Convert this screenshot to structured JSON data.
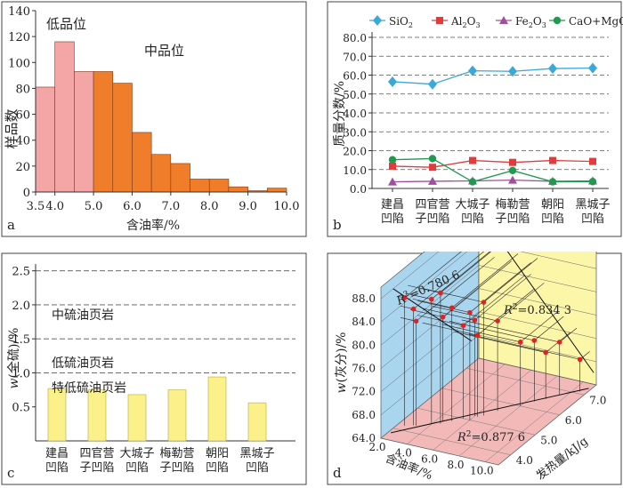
{
  "chart_data": [
    {
      "panel_id": "a",
      "type": "bar",
      "subtype": "histogram",
      "xlabel": "含油率/%",
      "ylabel": "样品数",
      "xlim": [
        3.5,
        10.0
      ],
      "ylim": [
        0,
        140
      ],
      "xticks": [
        "3.5",
        "4.0",
        "5.0",
        "6.0",
        "7.0",
        "8.0",
        "9.0",
        "10.0"
      ],
      "yticks": [
        "0",
        "20",
        "40",
        "60",
        "80",
        "100",
        "120",
        "140"
      ],
      "annotations": [
        "低品位",
        "中品位"
      ],
      "bins": [
        {
          "from": 3.5,
          "to": 4.0,
          "value": 81,
          "group": "低品位"
        },
        {
          "from": 4.0,
          "to": 4.5,
          "value": 116,
          "group": "低品位"
        },
        {
          "from": 4.5,
          "to": 5.0,
          "value": 93,
          "group": "低品位"
        },
        {
          "from": 5.0,
          "to": 5.5,
          "value": 93,
          "group": "中品位"
        },
        {
          "from": 5.5,
          "to": 6.0,
          "value": 84,
          "group": "中品位"
        },
        {
          "from": 6.0,
          "to": 6.5,
          "value": 46,
          "group": "中品位"
        },
        {
          "from": 6.5,
          "to": 7.0,
          "value": 29,
          "group": "中品位"
        },
        {
          "from": 7.0,
          "to": 7.5,
          "value": 22,
          "group": "中品位"
        },
        {
          "from": 7.5,
          "to": 8.0,
          "value": 10,
          "group": "中品位"
        },
        {
          "from": 8.0,
          "to": 8.5,
          "value": 10,
          "group": "中品位"
        },
        {
          "from": 8.5,
          "to": 9.0,
          "value": 4,
          "group": "中品位"
        },
        {
          "from": 9.0,
          "to": 9.5,
          "value": 1,
          "group": "中品位"
        },
        {
          "from": 9.5,
          "to": 10.0,
          "value": 3,
          "group": "中品位"
        }
      ],
      "colors": {
        "低品位": "#f4a6a6",
        "中品位": "#ef7d2a"
      }
    },
    {
      "panel_id": "b",
      "type": "line",
      "ylabel": "质量分数/%",
      "ylim": [
        0,
        80
      ],
      "yticks": [
        "0.0",
        "10.0",
        "20.0",
        "30.0",
        "40.0",
        "50.0",
        "60.0",
        "70.0",
        "80.0"
      ],
      "categories": [
        [
          "建昌",
          "凹陷"
        ],
        [
          "四官营",
          "子凹陷"
        ],
        [
          "大城子",
          "凹陷"
        ],
        [
          "梅勒营",
          "子凹陷"
        ],
        [
          "朝阳",
          "凹陷"
        ],
        [
          "黑城子",
          "凹陷"
        ]
      ],
      "series": [
        {
          "name": "SiO",
          "sub": "2",
          "values": [
            56.5,
            55.2,
            62.3,
            62.0,
            63.5,
            63.7
          ],
          "color": "#3aa8d8",
          "marker": "diamond"
        },
        {
          "name": "Al",
          "sub": "2",
          "name2": "O",
          "sub2": "3",
          "values": [
            11.8,
            11.2,
            14.8,
            13.8,
            14.8,
            14.3
          ],
          "color": "#e23b3b",
          "marker": "square"
        },
        {
          "name": "Fe",
          "sub": "2",
          "name2": "O",
          "sub2": "3",
          "values": [
            3.5,
            3.8,
            4.0,
            4.4,
            3.8,
            4.0
          ],
          "color": "#a0509b",
          "marker": "triangle"
        },
        {
          "name": "CaO+MgO",
          "values": [
            15.2,
            15.8,
            3.5,
            9.5,
            3.5,
            3.6
          ],
          "color": "#1f9a4f",
          "marker": "circle"
        }
      ]
    },
    {
      "panel_id": "c",
      "type": "bar",
      "ylabel_main": "w",
      "ylabel_rest": "(全硫)/%",
      "ylim": [
        0,
        2.6
      ],
      "yticks": [
        "0.5",
        "1.0",
        "1.5",
        "2.0",
        "2.5"
      ],
      "reference_lines": [
        1.0,
        1.5,
        2.0,
        2.5
      ],
      "categories": [
        [
          "建昌",
          "凹陷"
        ],
        [
          "四官营",
          "子凹陷"
        ],
        [
          "大城子",
          "凹陷"
        ],
        [
          "梅勒营",
          "子凹陷"
        ],
        [
          "朝阳",
          "凹陷"
        ],
        [
          "黑城子",
          "凹陷"
        ]
      ],
      "values": [
        0.77,
        0.75,
        0.68,
        0.75,
        0.94,
        0.56
      ],
      "annotations": [
        "中硫油页岩",
        "低硫油页岩",
        "特低硫油页岩"
      ],
      "bar_color": "#fbf08a"
    },
    {
      "panel_id": "d",
      "type": "scatter",
      "subtype": "3d",
      "zlabel_main": "w",
      "zlabel_rest": "(灰分)/%",
      "xlabel": "含油率/%",
      "ylabel": "发热量/kJ/g",
      "zlim": [
        64,
        90
      ],
      "xlim": [
        2,
        11
      ],
      "ylim": [
        3.5,
        7.5
      ],
      "zticks": [
        "64.0",
        "68.0",
        "72.0",
        "76.0",
        "80.0",
        "84.0",
        "88.0"
      ],
      "xticks": [
        "2.0",
        "4.0",
        "6.0",
        "8.0",
        "10.0"
      ],
      "yticks": [
        "4.0",
        "5.0",
        "6.0",
        "7.0"
      ],
      "r2": [
        {
          "label": "R",
          "sup": "2",
          "value": "=0.780 6",
          "plane": "back-left"
        },
        {
          "label": "R",
          "sup": "2",
          "value": "=0.834 3",
          "plane": "back-right"
        },
        {
          "label": "R",
          "sup": "2",
          "value": "=0.877 6",
          "plane": "floor"
        }
      ],
      "points": [
        {
          "x": 2.5,
          "y": 4.2,
          "z": 86.0
        },
        {
          "x": 3.0,
          "y": 4.3,
          "z": 84.0
        },
        {
          "x": 3.2,
          "y": 4.3,
          "z": 82.0
        },
        {
          "x": 4.0,
          "y": 4.5,
          "z": 85.5
        },
        {
          "x": 4.5,
          "y": 4.6,
          "z": 86.5
        },
        {
          "x": 5.0,
          "y": 4.8,
          "z": 83.5
        },
        {
          "x": 4.5,
          "y": 4.7,
          "z": 82.0
        },
        {
          "x": 5.5,
          "y": 5.0,
          "z": 80.0
        },
        {
          "x": 6.0,
          "y": 5.2,
          "z": 80.5
        },
        {
          "x": 6.0,
          "y": 5.0,
          "z": 82.5
        },
        {
          "x": 6.5,
          "y": 5.3,
          "z": 83.5
        },
        {
          "x": 6.2,
          "y": 5.2,
          "z": 78.0
        },
        {
          "x": 7.0,
          "y": 5.6,
          "z": 79.5
        },
        {
          "x": 8.0,
          "y": 6.0,
          "z": 75.0
        },
        {
          "x": 8.5,
          "y": 6.3,
          "z": 74.5
        },
        {
          "x": 9.0,
          "y": 6.5,
          "z": 72.0
        },
        {
          "x": 9.5,
          "y": 6.8,
          "z": 73.0
        },
        {
          "x": 10.5,
          "y": 7.1,
          "z": 69.5
        }
      ],
      "colors": {
        "back_left": "#a9d5ee",
        "back_right": "#fbf6a8",
        "floor": "#f3b9b9",
        "point": "#e02222"
      }
    }
  ]
}
